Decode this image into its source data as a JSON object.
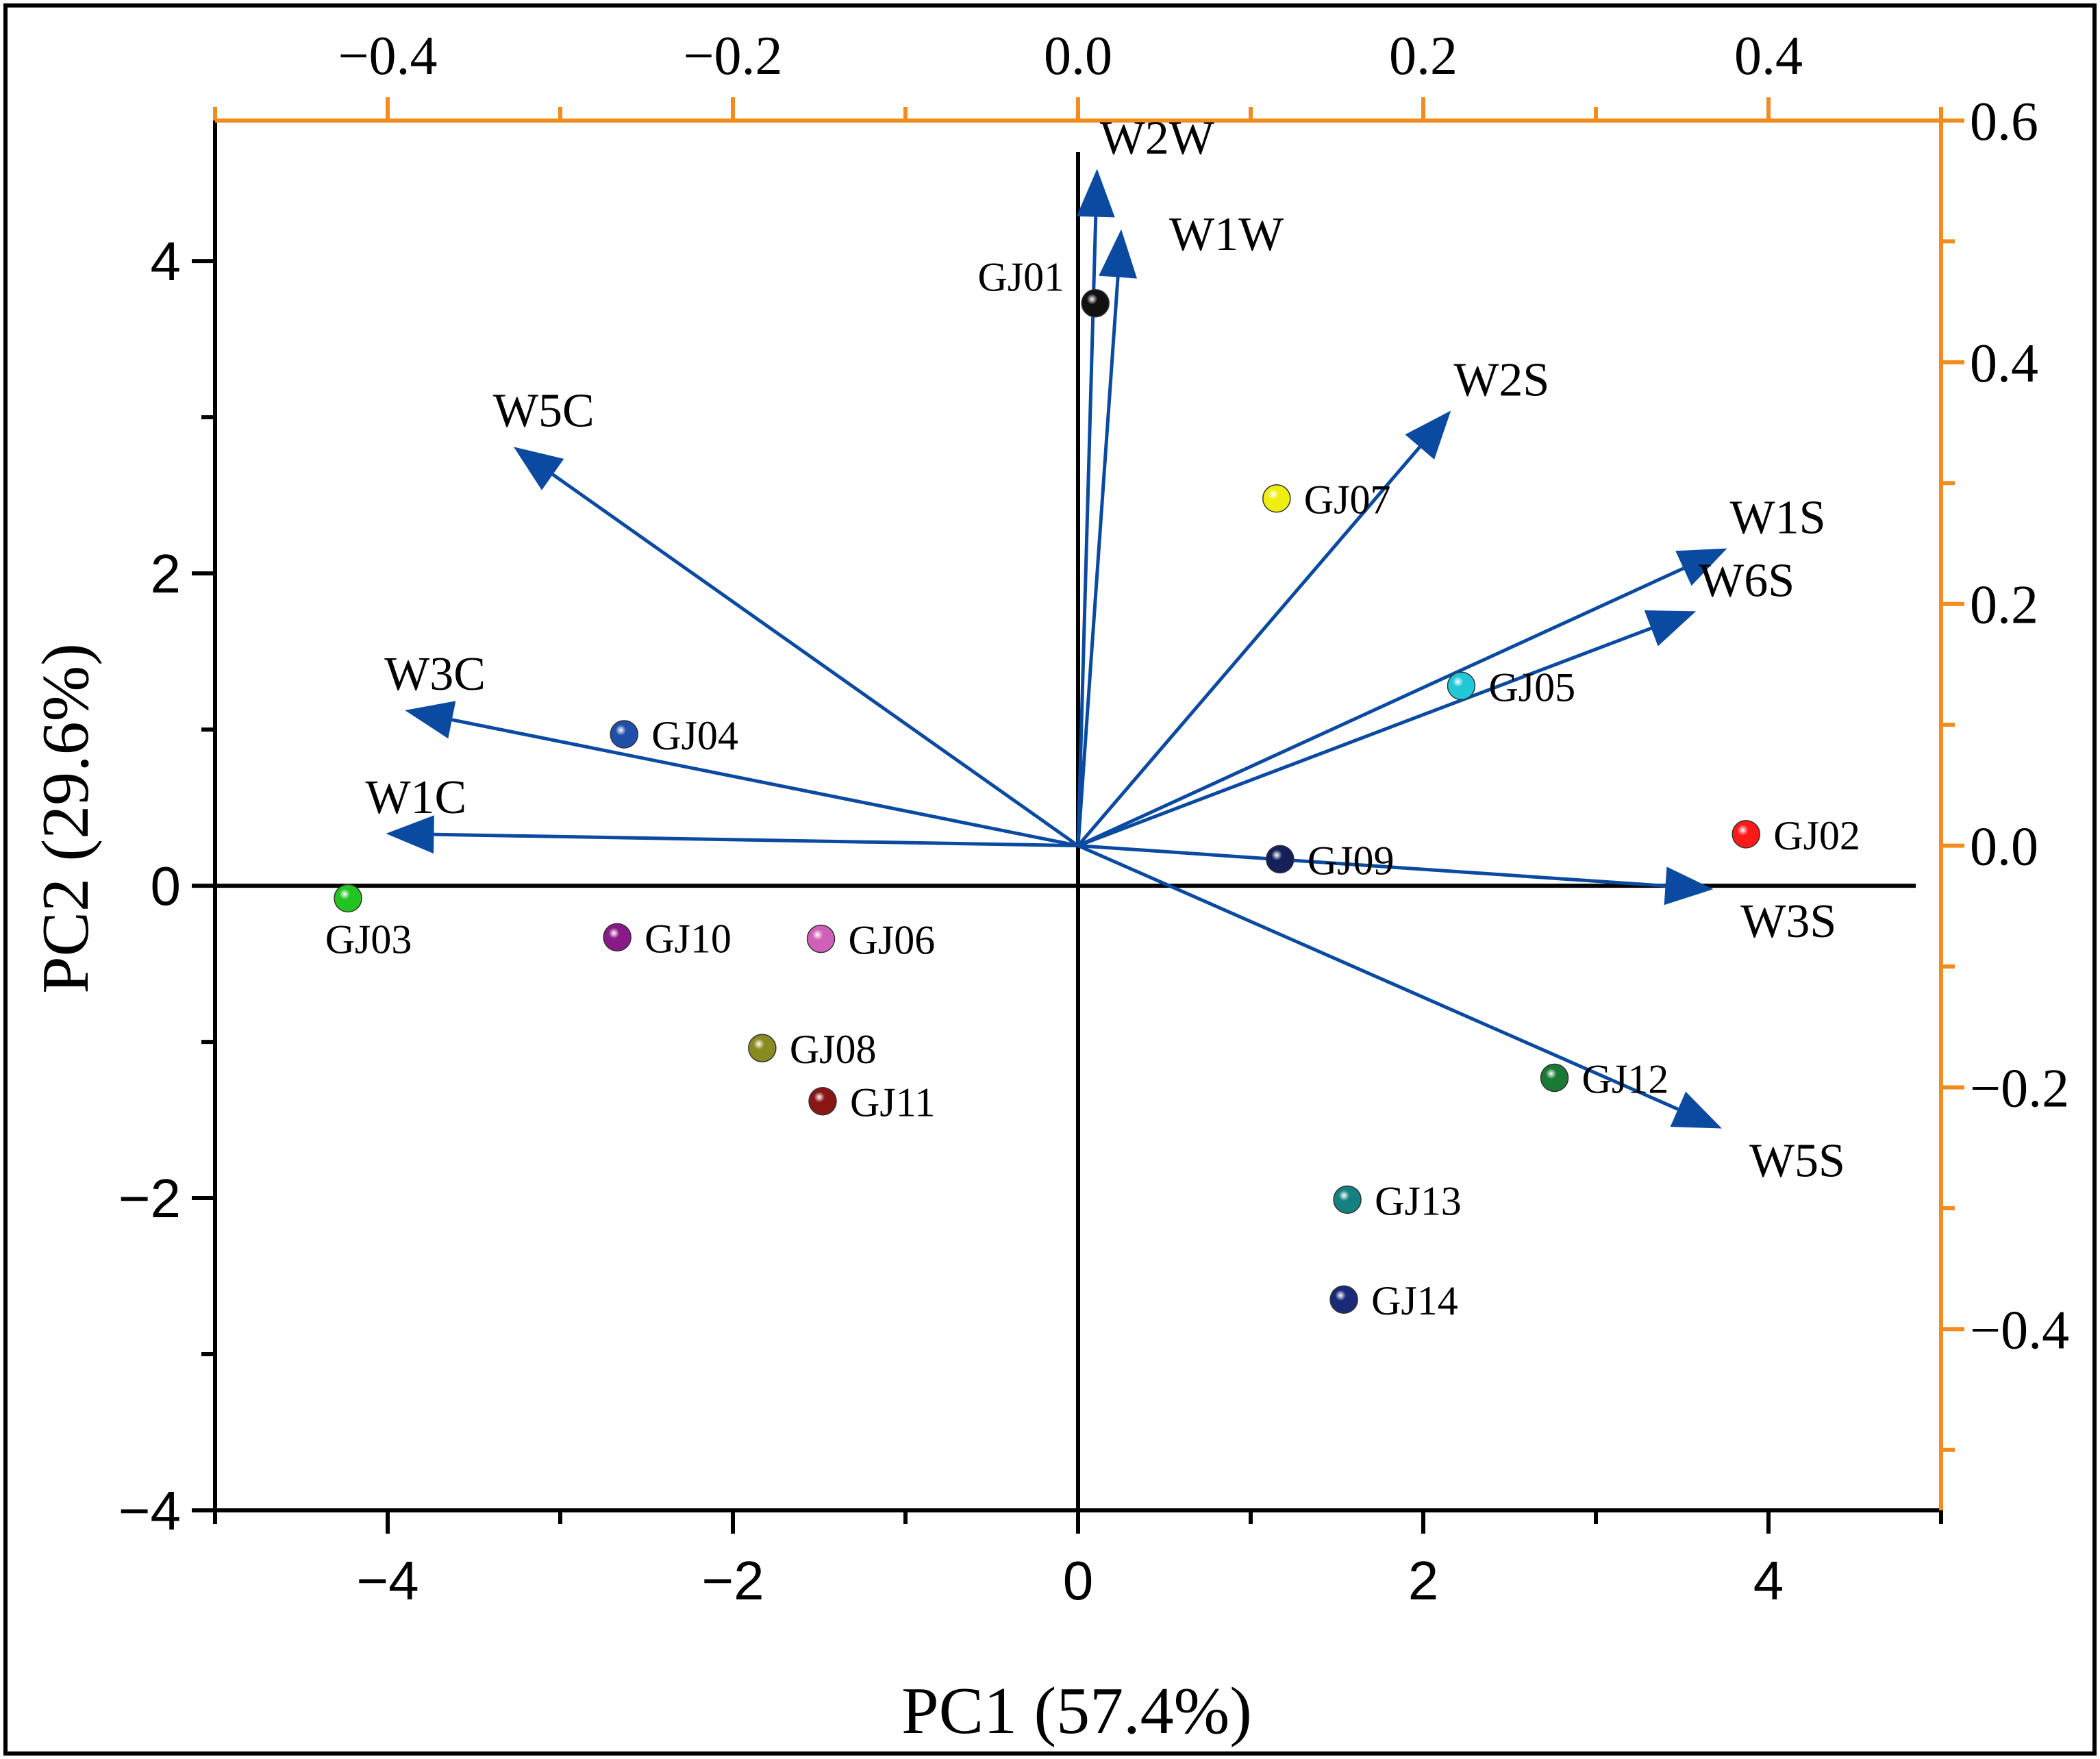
{
  "chart_data": {
    "type": "scatter",
    "subtype": "pca-biplot",
    "xlabel": "PC1 (57.4%)",
    "ylabel": "PC2 (29.6%)",
    "score_axes": {
      "xlim": [
        -5,
        5
      ],
      "ylim": [
        -4,
        4.9
      ],
      "x_ticks": [
        -4,
        -2,
        0,
        2,
        4
      ],
      "y_ticks": [
        -4,
        -2,
        0,
        2,
        4
      ],
      "x_tick_labels": [
        "−4",
        "−2",
        "0",
        "2",
        "4"
      ],
      "y_tick_labels": [
        "−4",
        "−2",
        "0",
        "2",
        "4"
      ]
    },
    "loading_axes": {
      "xlim": [
        -0.5,
        0.5
      ],
      "ylim": [
        -0.55,
        0.6
      ],
      "x_ticks": [
        -0.4,
        -0.2,
        0.0,
        0.2,
        0.4
      ],
      "y_ticks": [
        -0.4,
        -0.2,
        0.0,
        0.2,
        0.4,
        0.6
      ],
      "x_tick_labels": [
        "−0.4",
        "−0.2",
        "0.0",
        "0.2",
        "0.4"
      ],
      "y_tick_labels": [
        "−0.4",
        "−0.2",
        "0.0",
        "0.2",
        "0.4",
        "0.6"
      ],
      "color": "#f28c1e"
    },
    "samples": [
      {
        "name": "GJ01",
        "x": 0.1,
        "y": 3.73,
        "color": "#111111",
        "label_pos": "left"
      },
      {
        "name": "GJ02",
        "x": 3.87,
        "y": 0.33,
        "color": "#ff1a1a",
        "label_pos": "right"
      },
      {
        "name": "GJ03",
        "x": -4.23,
        "y": -0.08,
        "color": "#22c422",
        "label_pos": "below"
      },
      {
        "name": "GJ04",
        "x": -2.63,
        "y": 0.97,
        "color": "#1f4fa8",
        "label_pos": "right"
      },
      {
        "name": "GJ05",
        "x": 2.22,
        "y": 1.28,
        "color": "#20c8d8",
        "label_pos": "right"
      },
      {
        "name": "GJ06",
        "x": -1.49,
        "y": -0.34,
        "color": "#d060b8",
        "label_pos": "right"
      },
      {
        "name": "GJ07",
        "x": 1.15,
        "y": 2.48,
        "color": "#eeee10",
        "label_pos": "right"
      },
      {
        "name": "GJ08",
        "x": -1.83,
        "y": -1.04,
        "color": "#8a8a22",
        "label_pos": "right"
      },
      {
        "name": "GJ09",
        "x": 1.17,
        "y": 0.17,
        "color": "#14205a",
        "label_pos": "right"
      },
      {
        "name": "GJ10",
        "x": -2.67,
        "y": -0.33,
        "color": "#8a1a88",
        "label_pos": "right"
      },
      {
        "name": "GJ11",
        "x": -1.48,
        "y": -1.38,
        "color": "#8a1515",
        "label_pos": "right"
      },
      {
        "name": "GJ12",
        "x": 2.76,
        "y": -1.23,
        "color": "#1a7a33",
        "label_pos": "right"
      },
      {
        "name": "GJ13",
        "x": 1.56,
        "y": -2.01,
        "color": "#158080",
        "label_pos": "right"
      },
      {
        "name": "GJ14",
        "x": 1.54,
        "y": -2.65,
        "color": "#1a2a78",
        "label_pos": "right"
      }
    ],
    "loadings": [
      {
        "name": "W2W",
        "x": 0.011,
        "y": 0.56,
        "label_pos": "top-right"
      },
      {
        "name": "W1W",
        "x": 0.025,
        "y": 0.51,
        "label_pos": "right"
      },
      {
        "name": "W2S",
        "x": 0.216,
        "y": 0.36,
        "label_pos": "top-right"
      },
      {
        "name": "W1S",
        "x": 0.376,
        "y": 0.246,
        "label_pos": "top-right"
      },
      {
        "name": "W6S",
        "x": 0.358,
        "y": 0.194,
        "label_pos": "top-right"
      },
      {
        "name": "W3S",
        "x": 0.368,
        "y": -0.036,
        "label_pos": "below-right"
      },
      {
        "name": "W5S",
        "x": 0.373,
        "y": -0.234,
        "label_pos": "below-right"
      },
      {
        "name": "W5C",
        "x": -0.327,
        "y": 0.33,
        "label_pos": "above"
      },
      {
        "name": "W3C",
        "x": -0.39,
        "y": 0.112,
        "label_pos": "above"
      },
      {
        "name": "W1C",
        "x": -0.401,
        "y": 0.01,
        "label_pos": "above"
      }
    ],
    "arrow_color": "#0a4aa0",
    "grid": false,
    "legend": "none"
  }
}
